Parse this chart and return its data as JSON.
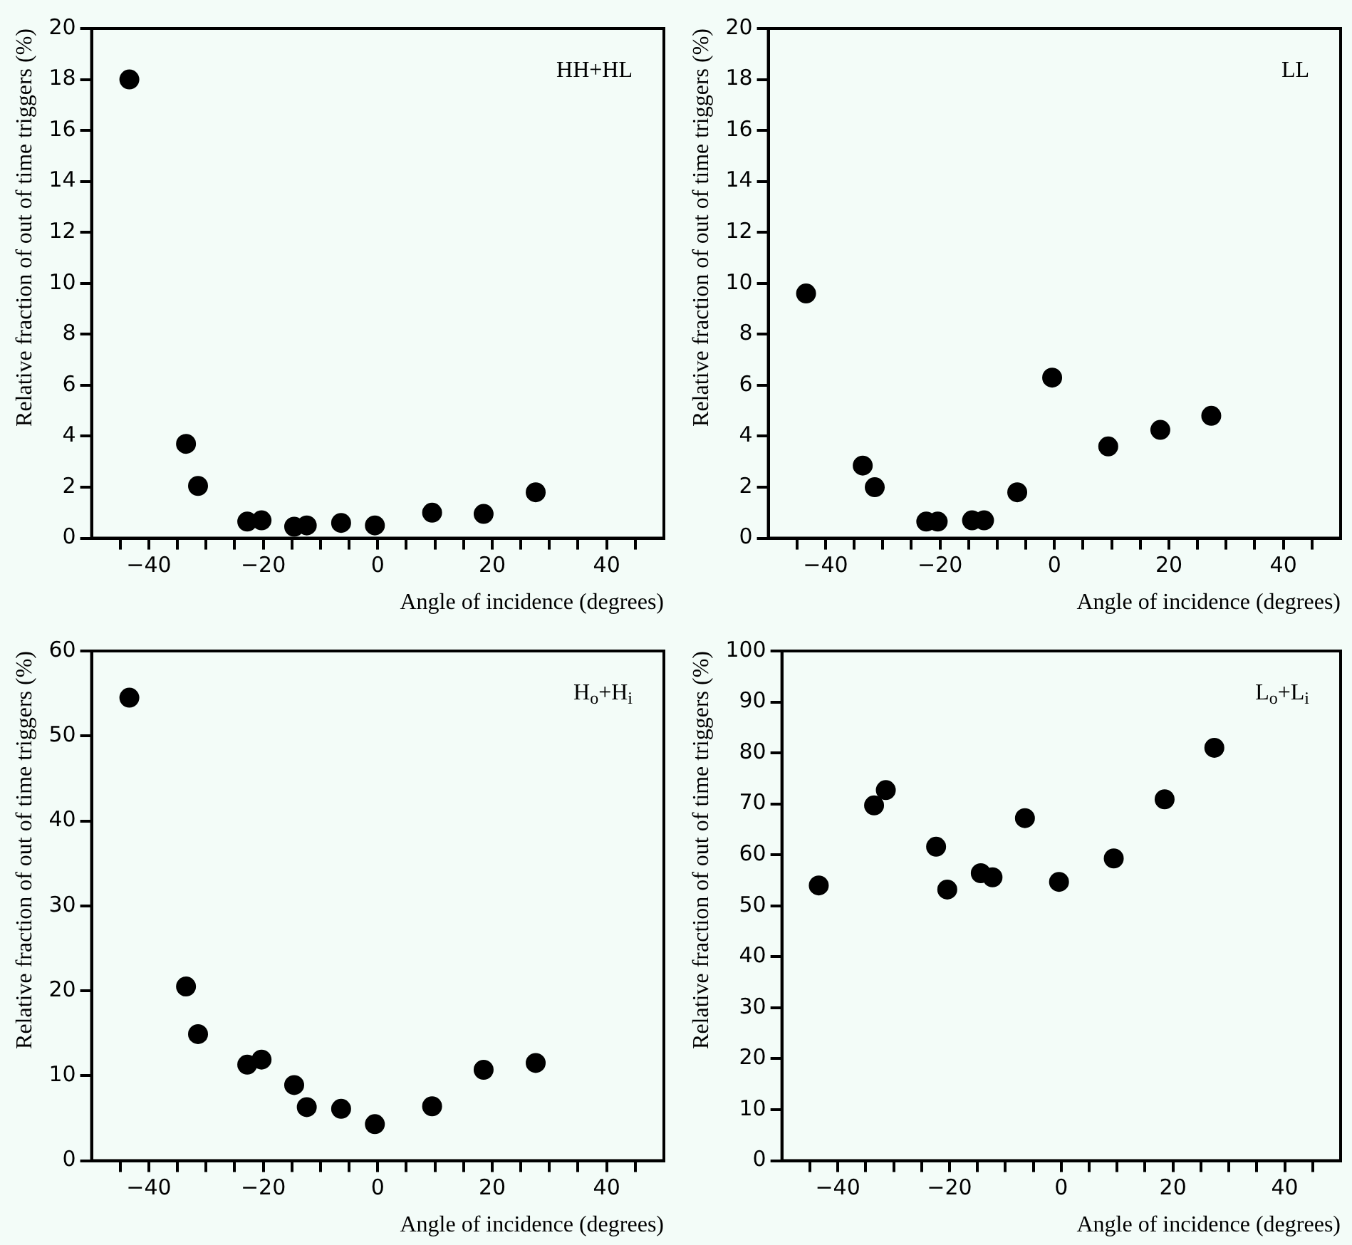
{
  "chart_data": [
    {
      "type": "scatter",
      "xlabel": "Angle of incidence (degrees)",
      "ylabel": "Relative fraction of out of time triggers (%)",
      "annotations": [
        "HH+HL"
      ],
      "marker": "circle",
      "legend": false,
      "grid": false,
      "x": [
        -43.4,
        -33.5,
        -31.4,
        -22.8,
        -20.3,
        -14.6,
        -12.4,
        -6.4,
        -0.5,
        9.5,
        18.5,
        27.6
      ],
      "series": [
        {
          "color": "#000000",
          "values": [
            18.0,
            3.7,
            2.05,
            0.65,
            0.7,
            0.45,
            0.5,
            0.6,
            0.5,
            1.0,
            0.95,
            1.8
          ]
        }
      ],
      "xlim": [
        -50,
        50
      ],
      "xticks": [
        {
          "value": -45,
          "label": null
        },
        -40,
        {
          "value": -35,
          "label": null
        },
        {
          "value": -30,
          "label": null
        },
        {
          "value": -25,
          "label": null
        },
        -20,
        {
          "value": -15,
          "label": null
        },
        {
          "value": -10,
          "label": null
        },
        {
          "value": -5,
          "label": null
        },
        0,
        {
          "value": 5,
          "label": null
        },
        {
          "value": 10,
          "label": null
        },
        {
          "value": 15,
          "label": null
        },
        20,
        {
          "value": 25,
          "label": null
        },
        {
          "value": 30,
          "label": null
        },
        {
          "value": 35,
          "label": null
        },
        40,
        {
          "value": 45,
          "label": null
        }
      ],
      "ylim": [
        0,
        20
      ],
      "yticks": [
        0,
        2,
        4,
        6,
        8,
        10,
        12,
        14,
        16,
        18,
        20
      ]
    },
    {
      "type": "scatter",
      "xlabel": "Angle of incidence (degrees)",
      "ylabel": "Relative fraction of out of time triggers (%)",
      "annotations": [
        "LL"
      ],
      "marker": "circle",
      "legend": false,
      "grid": false,
      "x": [
        -43.4,
        -33.5,
        -31.4,
        -22.4,
        -20.4,
        -14.4,
        -12.3,
        -6.5,
        -0.4,
        9.4,
        18.5,
        27.4
      ],
      "series": [
        {
          "color": "#000000",
          "values": [
            9.6,
            2.85,
            2.0,
            0.65,
            0.65,
            0.7,
            0.7,
            1.8,
            6.3,
            3.6,
            4.25,
            4.8
          ]
        }
      ],
      "xlim": [
        -50,
        50
      ],
      "xticks": [
        {
          "value": -45,
          "label": null
        },
        -40,
        {
          "value": -35,
          "label": null
        },
        {
          "value": -30,
          "label": null
        },
        {
          "value": -25,
          "label": null
        },
        -20,
        {
          "value": -15,
          "label": null
        },
        {
          "value": -10,
          "label": null
        },
        {
          "value": -5,
          "label": null
        },
        0,
        {
          "value": 5,
          "label": null
        },
        {
          "value": 10,
          "label": null
        },
        {
          "value": 15,
          "label": null
        },
        20,
        {
          "value": 25,
          "label": null
        },
        {
          "value": 30,
          "label": null
        },
        {
          "value": 35,
          "label": null
        },
        40,
        {
          "value": 45,
          "label": null
        }
      ],
      "ylim": [
        0,
        20
      ],
      "yticks": [
        0,
        2,
        4,
        6,
        8,
        10,
        12,
        14,
        16,
        18,
        20
      ]
    },
    {
      "type": "scatter",
      "xlabel": "Angle of incidence (degrees)",
      "ylabel": "Relative fraction of out of time triggers (%)",
      "annotations": [
        "H$_{o}$+H$_{i}$"
      ],
      "marker": "circle",
      "legend": false,
      "grid": false,
      "x": [
        -43.4,
        -33.5,
        -31.4,
        -22.8,
        -20.3,
        -14.6,
        -12.4,
        -6.4,
        -0.5,
        9.5,
        18.5,
        27.6
      ],
      "series": [
        {
          "color": "#000000",
          "values": [
            54.5,
            20.5,
            14.9,
            11.3,
            11.9,
            8.9,
            6.3,
            6.1,
            4.3,
            6.4,
            10.7,
            11.5
          ]
        }
      ],
      "xlim": [
        -50,
        50
      ],
      "xticks": [
        {
          "value": -45,
          "label": null
        },
        -40,
        {
          "value": -35,
          "label": null
        },
        {
          "value": -30,
          "label": null
        },
        {
          "value": -25,
          "label": null
        },
        -20,
        {
          "value": -15,
          "label": null
        },
        {
          "value": -10,
          "label": null
        },
        {
          "value": -5,
          "label": null
        },
        0,
        {
          "value": 5,
          "label": null
        },
        {
          "value": 10,
          "label": null
        },
        {
          "value": 15,
          "label": null
        },
        20,
        {
          "value": 25,
          "label": null
        },
        {
          "value": 30,
          "label": null
        },
        {
          "value": 35,
          "label": null
        },
        40,
        {
          "value": 45,
          "label": null
        }
      ],
      "ylim": [
        0,
        60
      ],
      "yticks": [
        0,
        10,
        20,
        30,
        40,
        50,
        60
      ]
    },
    {
      "type": "scatter",
      "xlabel": "Angle of incidence (degrees)",
      "ylabel": "Relative fraction of out of time triggers (%)",
      "annotations": [
        "L$_{o}$+L$_{i}$"
      ],
      "marker": "circle",
      "legend": false,
      "grid": false,
      "x": [
        -43.4,
        -33.5,
        -31.4,
        -22.4,
        -20.4,
        -14.4,
        -12.3,
        -6.5,
        -0.4,
        9.4,
        18.5,
        27.4
      ],
      "series": [
        {
          "color": "#000000",
          "values": [
            54.0,
            69.7,
            72.7,
            61.6,
            53.2,
            56.4,
            55.6,
            67.2,
            54.7,
            59.3,
            70.9,
            81.0
          ]
        }
      ],
      "xlim": [
        -50,
        50
      ],
      "xticks": [
        {
          "value": -45,
          "label": null
        },
        -40,
        {
          "value": -35,
          "label": null
        },
        {
          "value": -30,
          "label": null
        },
        {
          "value": -25,
          "label": null
        },
        -20,
        {
          "value": -15,
          "label": null
        },
        {
          "value": -10,
          "label": null
        },
        {
          "value": -5,
          "label": null
        },
        0,
        {
          "value": 5,
          "label": null
        },
        {
          "value": 10,
          "label": null
        },
        {
          "value": 15,
          "label": null
        },
        20,
        {
          "value": 25,
          "label": null
        },
        {
          "value": 30,
          "label": null
        },
        {
          "value": 35,
          "label": null
        },
        40,
        {
          "value": 45,
          "label": null
        }
      ],
      "ylim": [
        0,
        100
      ],
      "yticks": [
        0,
        10,
        20,
        30,
        40,
        50,
        60,
        70,
        80,
        90,
        100
      ]
    }
  ]
}
